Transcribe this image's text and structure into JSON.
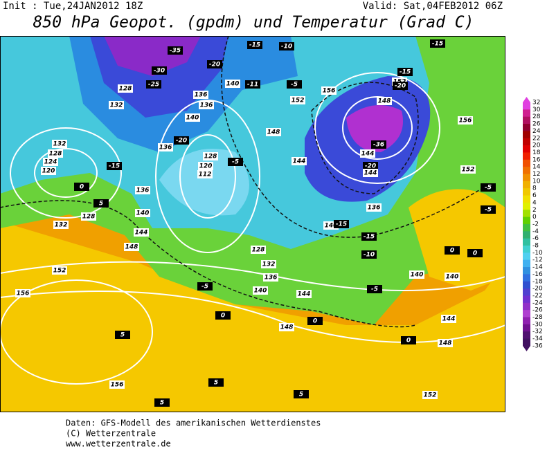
{
  "header": {
    "init": "Init : Tue,24JAN2012 18Z",
    "valid": "Valid: Sat,04FEB2012 06Z",
    "title": "850 hPa Geopot. (gpdm) und Temperatur (Grad C)"
  },
  "map": {
    "contour_labels": [
      -35,
      -30,
      -25,
      -20,
      -15,
      -10,
      -15,
      -11,
      -5,
      128,
      132,
      136,
      136,
      140,
      140,
      156,
      152,
      152,
      -15,
      -20,
      148,
      156,
      148,
      -20,
      136,
      128,
      120,
      112,
      -5,
      132,
      128,
      124,
      120,
      -15,
      144,
      -36,
      144,
      -20,
      144,
      152,
      -5,
      -5,
      0,
      5,
      136,
      140,
      144,
      128,
      132,
      136,
      140,
      -15,
      -15,
      148,
      128,
      132,
      -10,
      0,
      0,
      152,
      136,
      140,
      140,
      -5,
      140,
      144,
      -5,
      156,
      0,
      144,
      148,
      0,
      5,
      148,
      0,
      156,
      5,
      5,
      5,
      152
    ]
  },
  "colorbar": {
    "labels": [
      32,
      30,
      28,
      26,
      24,
      22,
      20,
      18,
      16,
      14,
      12,
      10,
      8,
      6,
      4,
      2,
      0,
      -2,
      -4,
      -6,
      -8,
      -10,
      -12,
      -14,
      -16,
      -18,
      -20,
      -22,
      -24,
      -26,
      -28,
      -30,
      -32,
      -34,
      -36
    ]
  },
  "footer": {
    "lines": [
      "Daten: GFS-Modell des amerikanischen Wetterdienstes",
      "(C) Wetterzentrale",
      "www.wetterzentrale.de"
    ]
  }
}
